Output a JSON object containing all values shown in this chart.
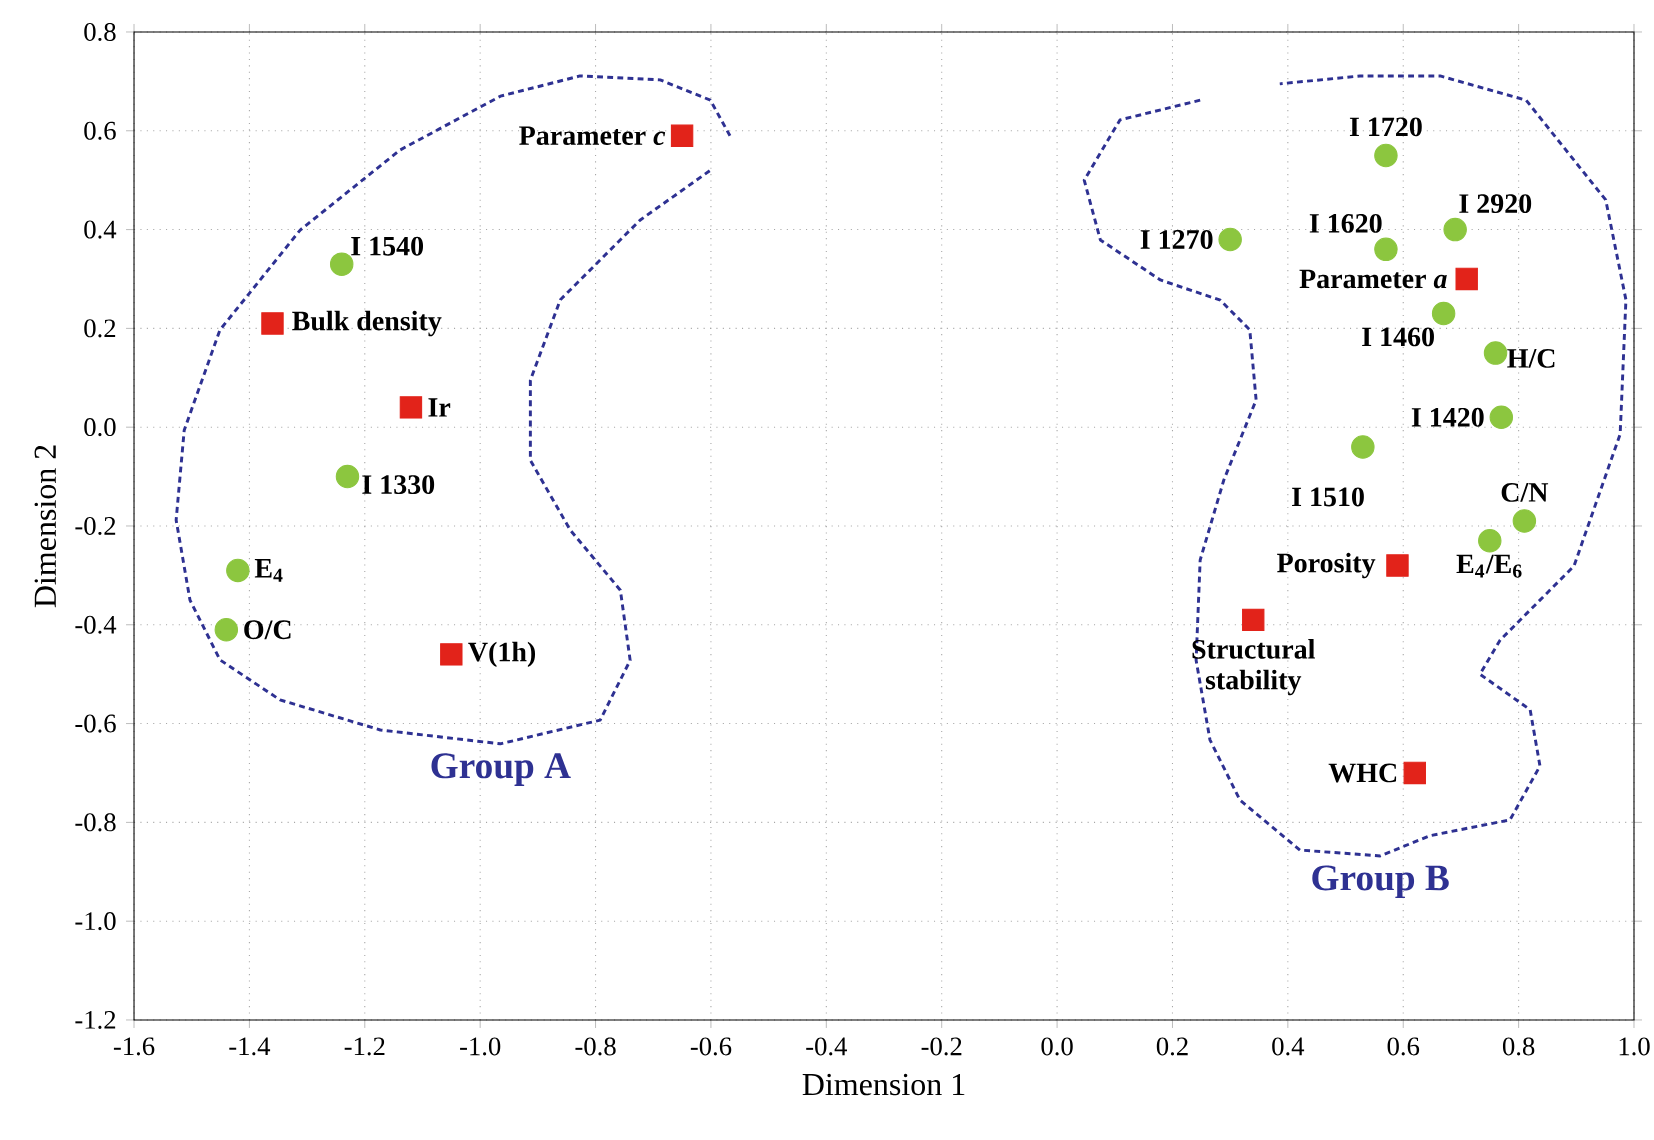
{
  "chart_data": {
    "type": "scatter",
    "xlabel": "Dimension 1",
    "ylabel": "Dimension 2",
    "xlim": [
      -1.6,
      1.0
    ],
    "ylim": [
      -1.2,
      0.8
    ],
    "xticks": [
      {
        "value": -1.6,
        "label": "-1.6"
      },
      {
        "value": -1.4,
        "label": "-1.4"
      },
      {
        "value": -1.2,
        "label": "-1.2"
      },
      {
        "value": -1.0,
        "label": "-1.0"
      },
      {
        "value": -0.8,
        "label": "-0.8"
      },
      {
        "value": -0.6,
        "label": "-0.6"
      },
      {
        "value": -0.4,
        "label": "-0.4"
      },
      {
        "value": -0.2,
        "label": "-0.2"
      },
      {
        "value": 0,
        "label": "0.0"
      },
      {
        "value": 0.2,
        "label": "0.2"
      },
      {
        "value": 0.4,
        "label": "0.4"
      },
      {
        "value": 0.6,
        "label": "0.6"
      },
      {
        "value": 0.8,
        "label": "0.8"
      },
      {
        "value": 1.0,
        "label": "1.0"
      }
    ],
    "yticks": [
      {
        "value": -1.2,
        "label": "-1.2"
      },
      {
        "value": -1.0,
        "label": "-1.0"
      },
      {
        "value": -0.8,
        "label": "-0.8"
      },
      {
        "value": -0.6,
        "label": "-0.6"
      },
      {
        "value": -0.4,
        "label": "-0.4"
      },
      {
        "value": -0.2,
        "label": "-0.2"
      },
      {
        "value": 0,
        "label": "0.0"
      },
      {
        "value": 0.2,
        "label": "0.2"
      },
      {
        "value": 0.4,
        "label": "0.4"
      },
      {
        "value": 0.6,
        "label": "0.6"
      },
      {
        "value": 0.8,
        "label": "0.8"
      }
    ],
    "grid": true,
    "series": [
      {
        "marker": "circle",
        "color": "#8cc63f",
        "x": [
          -1.24,
          -1.23,
          -1.42,
          -1.44,
          0.57,
          0.3,
          0.57,
          0.69,
          0.67,
          0.76,
          0.77,
          0.53,
          0.81,
          0.75
        ],
        "values": [
          0.33,
          -0.1,
          -0.29,
          -0.41,
          0.55,
          0.38,
          0.36,
          0.4,
          0.23,
          0.15,
          0.02,
          -0.04,
          -0.19,
          -0.23
        ]
      },
      {
        "marker": "square",
        "color": "#e2231a",
        "x": [
          -0.65,
          -1.36,
          -1.12,
          -1.05,
          0.71,
          0.59,
          0.34,
          0.62
        ],
        "values": [
          0.59,
          0.21,
          0.04,
          -0.46,
          0.3,
          -0.28,
          -0.39,
          -0.7
        ]
      },
      {
        "type": "line",
        "name": "Group A",
        "line_style": "dashed",
        "marker": "none",
        "color": "#2e3192",
        "x": [
          -0.567,
          -0.601,
          -0.688,
          -0.827,
          -0.965,
          -1.139,
          -1.312,
          -1.451,
          -1.513,
          -1.527,
          -1.503,
          -1.451,
          -1.347,
          -1.173,
          -0.965,
          -0.792,
          -0.74,
          -0.757,
          -0.844,
          -0.913,
          -0.913,
          -0.861,
          -0.723,
          -0.601
        ],
        "values": [
          0.59,
          0.662,
          0.703,
          0.711,
          0.67,
          0.561,
          0.399,
          0.197,
          -0.006,
          -0.188,
          -0.35,
          -0.471,
          -0.552,
          -0.613,
          -0.641,
          -0.593,
          -0.472,
          -0.33,
          -0.208,
          -0.067,
          0.095,
          0.258,
          0.419,
          0.52
        ]
      },
      {
        "type": "line",
        "name": "Group B",
        "line_style": "dashed",
        "marker": "none",
        "color": "#2e3192",
        "x": [
          0.248,
          0.109,
          0.047,
          0.075,
          0.179,
          0.283,
          0.334,
          0.345,
          0.289,
          0.248,
          0.241,
          0.265,
          0.317,
          0.421,
          0.56,
          0.646,
          0.785,
          0.837,
          0.82,
          0.733,
          0.768,
          0.896,
          0.976,
          0.986,
          0.951,
          0.813,
          0.664,
          0.525,
          0.386
        ],
        "values": [
          0.662,
          0.622,
          0.5,
          0.379,
          0.298,
          0.257,
          0.197,
          0.055,
          -0.107,
          -0.269,
          -0.472,
          -0.633,
          -0.755,
          -0.856,
          -0.868,
          -0.827,
          -0.795,
          -0.686,
          -0.572,
          -0.5,
          -0.431,
          -0.281,
          -0.014,
          0.258,
          0.46,
          0.662,
          0.711,
          0.711,
          0.695
        ]
      }
    ],
    "annotations": [
      {
        "text": "I 1540",
        "x": -1.24,
        "y": 0.33
      },
      {
        "text": "I 1330",
        "x": -1.23,
        "y": -0.1
      },
      {
        "text": "E$_{4}$",
        "x": -1.42,
        "y": -0.29
      },
      {
        "text": "O/C",
        "x": -1.44,
        "y": -0.41
      },
      {
        "text": "Parameter *c*",
        "x": -0.65,
        "y": 0.59
      },
      {
        "text": "Bulk density",
        "x": -1.36,
        "y": 0.21
      },
      {
        "text": "Ir",
        "x": -1.12,
        "y": 0.04
      },
      {
        "text": "V(1h)",
        "x": -1.05,
        "y": -0.46
      },
      {
        "text": "I 1720",
        "x": 0.57,
        "y": 0.55
      },
      {
        "text": "I 1270",
        "x": 0.3,
        "y": 0.38
      },
      {
        "text": "I 1620",
        "x": 0.57,
        "y": 0.36
      },
      {
        "text": "I 2920",
        "x": 0.69,
        "y": 0.4
      },
      {
        "text": "Parameter  *a*",
        "x": 0.71,
        "y": 0.3
      },
      {
        "text": "I 1460",
        "x": 0.67,
        "y": 0.23
      },
      {
        "text": "H/C",
        "x": 0.76,
        "y": 0.15
      },
      {
        "text": "I 1420",
        "x": 0.77,
        "y": 0.02
      },
      {
        "text": "I 1510",
        "x": 0.53,
        "y": -0.04
      },
      {
        "text": "C/N",
        "x": 0.81,
        "y": -0.19
      },
      {
        "text": "E$_{4}$/E$_{6}$",
        "x": 0.75,
        "y": -0.23
      },
      {
        "text": "Porosity",
        "x": 0.59,
        "y": -0.28
      },
      {
        "text": "Structural stability",
        "x": 0.34,
        "y": -0.39
      },
      {
        "text": "WHC",
        "x": 0.62,
        "y": -0.7
      }
    ]
  }
}
